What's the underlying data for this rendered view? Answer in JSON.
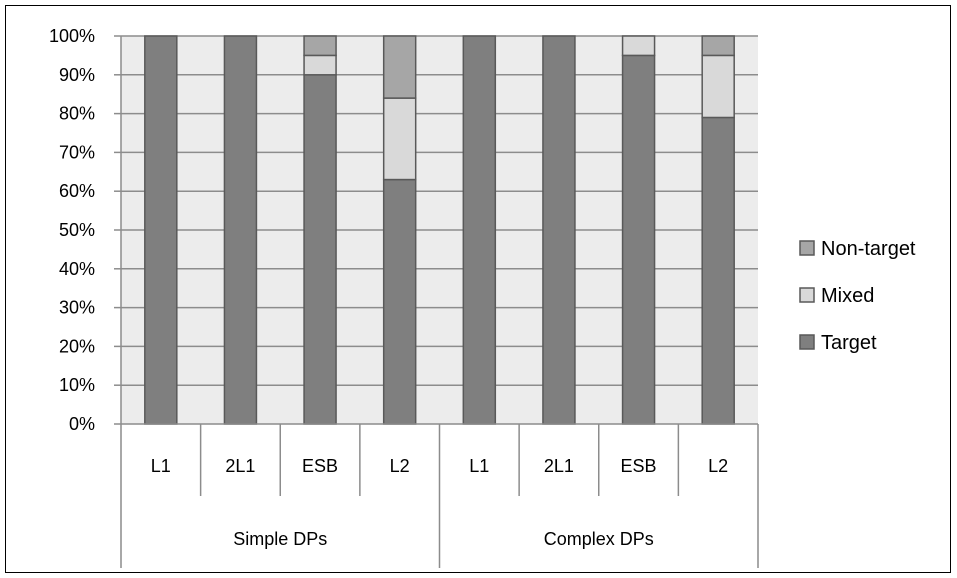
{
  "chart_data": {
    "type": "bar",
    "stacked": true,
    "title": "",
    "xlabel": "",
    "ylabel": "",
    "ylim": [
      0,
      100
    ],
    "y_ticks": [
      "0%",
      "10%",
      "20%",
      "30%",
      "40%",
      "50%",
      "60%",
      "70%",
      "80%",
      "90%",
      "100%"
    ],
    "grid": true,
    "legend_position": "right",
    "groups": [
      {
        "label": "Simple DPs",
        "categories": [
          "L1",
          "2L1",
          "ESB",
          "L2"
        ]
      },
      {
        "label": "Complex DPs",
        "categories": [
          "L1",
          "2L1",
          "ESB",
          "L2"
        ]
      }
    ],
    "categories": [
      "L1",
      "2L1",
      "ESB",
      "L2",
      "L1",
      "2L1",
      "ESB",
      "L2"
    ],
    "series": [
      {
        "name": "Target",
        "color": "#7f7f7f",
        "values": [
          100,
          100,
          90,
          63,
          100,
          100,
          95,
          79
        ]
      },
      {
        "name": "Mixed",
        "color": "#d9d9d9",
        "values": [
          0,
          0,
          5,
          21,
          0,
          0,
          5,
          16
        ]
      },
      {
        "name": "Non-target",
        "color": "#a6a6a6",
        "values": [
          0,
          0,
          5,
          16,
          0,
          0,
          0,
          5
        ]
      }
    ],
    "legend_order": [
      "Non-target",
      "Mixed",
      "Target"
    ],
    "plot_background": "#ececec"
  }
}
